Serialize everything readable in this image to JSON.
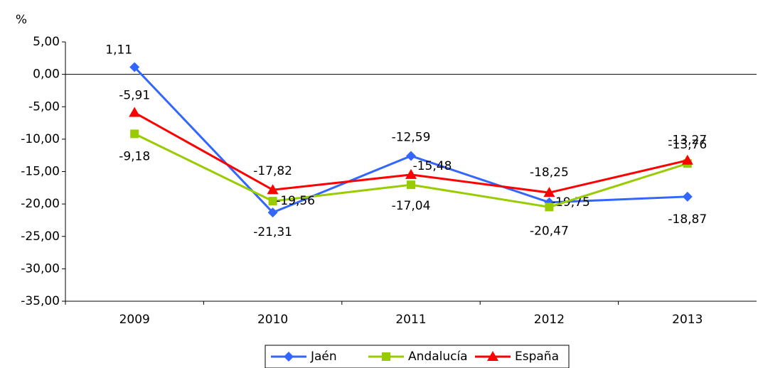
{
  "chart_data": {
    "type": "line",
    "ylabel": "%",
    "categories": [
      "2009",
      "2010",
      "2011",
      "2012",
      "2013"
    ],
    "series": [
      {
        "name": "Jaén",
        "color": "#3366ff",
        "marker": "diamond",
        "values": [
          1.11,
          -21.31,
          -12.59,
          -19.75,
          -18.87
        ],
        "value_labels": [
          "1,11",
          "-21,31",
          "-12,59",
          "-19,75",
          "-18,87"
        ]
      },
      {
        "name": "Andalucía",
        "color": "#99cc00",
        "marker": "square",
        "values": [
          -9.18,
          -19.56,
          -17.04,
          -20.47,
          -13.76
        ],
        "value_labels": [
          "-9,18",
          "-19,56",
          "-17,04",
          "-20,47",
          "-13,76"
        ]
      },
      {
        "name": "España",
        "color": "#ff0000",
        "marker": "triangle",
        "values": [
          -5.91,
          -17.82,
          -15.48,
          -18.25,
          -13.27
        ],
        "value_labels": [
          "-5,91",
          "-17,82",
          "-15,48",
          "-18,25",
          "-13,27"
        ]
      }
    ],
    "ylim": [
      -35,
      5
    ],
    "yticks": [
      {
        "value": 5,
        "label": "5,00"
      },
      {
        "value": 0,
        "label": "0,00"
      },
      {
        "value": -5,
        "label": "-5,00"
      },
      {
        "value": -10,
        "label": "-10,00"
      },
      {
        "value": -15,
        "label": "-15,00"
      },
      {
        "value": -20,
        "label": "-20,00"
      },
      {
        "value": -25,
        "label": "-25,00"
      },
      {
        "value": -30,
        "label": "-30,00"
      },
      {
        "value": -35,
        "label": "-35,00"
      }
    ],
    "legend": "bottom"
  }
}
